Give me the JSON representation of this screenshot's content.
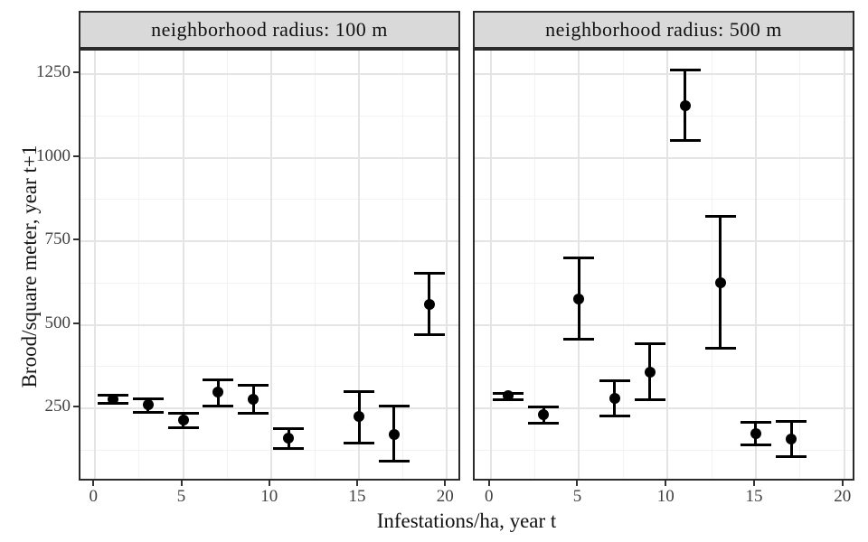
{
  "chart_data": {
    "type": "scatter",
    "title": "",
    "xlabel": "Infestations/ha, year t",
    "ylabel": "Brood/square meter, year t+1",
    "x_ticks": [
      0,
      5,
      10,
      15,
      20
    ],
    "x_minor_ticks": [
      2.5,
      7.5,
      12.5,
      17.5
    ],
    "y_ticks": [
      250,
      500,
      750,
      1000,
      1250
    ],
    "y_minor_ticks": [
      125,
      375,
      625,
      875,
      1125
    ],
    "xlim": [
      -0.85,
      20.9
    ],
    "ylim": [
      28,
      1320
    ],
    "grid": true,
    "legend": "none",
    "marker": "point-with-errorbar",
    "point_color": "#000000",
    "panels": [
      {
        "label": "neighborhood radius: 100 m",
        "series": [
          {
            "x": 1,
            "y": 278,
            "lo": 264,
            "hi": 289
          },
          {
            "x": 3,
            "y": 260,
            "lo": 239,
            "hi": 278
          },
          {
            "x": 5,
            "y": 215,
            "lo": 191,
            "hi": 234
          },
          {
            "x": 7,
            "y": 298,
            "lo": 256,
            "hi": 334
          },
          {
            "x": 9,
            "y": 277,
            "lo": 235,
            "hi": 318
          },
          {
            "x": 11,
            "y": 161,
            "lo": 129,
            "hi": 189
          },
          {
            "x": 15,
            "y": 227,
            "lo": 145,
            "hi": 300
          },
          {
            "x": 17,
            "y": 171,
            "lo": 91,
            "hi": 256
          },
          {
            "x": 19,
            "y": 560,
            "lo": 469,
            "hi": 654
          }
        ]
      },
      {
        "label": "neighborhood radius: 500 m",
        "series": [
          {
            "x": 1,
            "y": 287,
            "lo": 277,
            "hi": 295
          },
          {
            "x": 3,
            "y": 231,
            "lo": 206,
            "hi": 254
          },
          {
            "x": 5,
            "y": 577,
            "lo": 458,
            "hi": 699
          },
          {
            "x": 7,
            "y": 281,
            "lo": 227,
            "hi": 333
          },
          {
            "x": 9,
            "y": 358,
            "lo": 276,
            "hi": 444
          },
          {
            "x": 11,
            "y": 1156,
            "lo": 1051,
            "hi": 1262
          },
          {
            "x": 13,
            "y": 627,
            "lo": 429,
            "hi": 824
          },
          {
            "x": 15,
            "y": 174,
            "lo": 140,
            "hi": 209
          },
          {
            "x": 17,
            "y": 159,
            "lo": 106,
            "hi": 211
          }
        ]
      }
    ]
  },
  "colors": {
    "strip_bg": "#d9d9d9",
    "panel_border": "#2b2b2b",
    "grid_major": "#e4e4e4",
    "grid_minor": "#f2f2f2",
    "tick_label": "#404040",
    "data": "#000000"
  }
}
